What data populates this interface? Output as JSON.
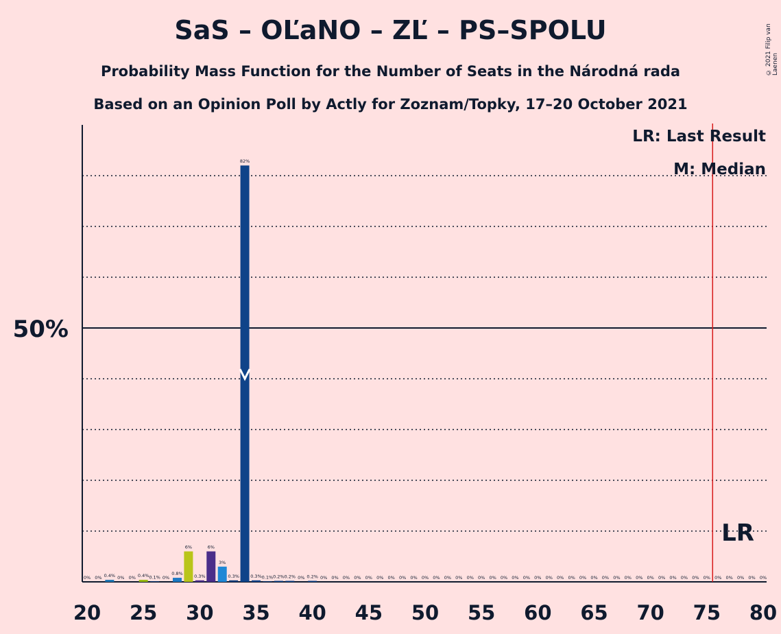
{
  "chart_data": {
    "type": "bar",
    "title": "SaS – OĽaNO – ZĽ – PS–SPOLU",
    "subtitle": "Probability Mass Function for the Number of Seats in the Národná rada",
    "subtitle2": "Based on an Opinion Poll by Actly for Zoznam/Topky, 17–20 October 2021",
    "copyright": "© 2021 Filip van Laenen",
    "legend": {
      "lr": "LR: Last Result",
      "median": "M: Median",
      "position": "top-right"
    },
    "x": [
      20,
      21,
      22,
      23,
      24,
      25,
      26,
      27,
      28,
      29,
      30,
      31,
      32,
      33,
      34,
      35,
      36,
      37,
      38,
      39,
      40,
      41,
      42,
      43,
      44,
      45,
      46,
      47,
      48,
      49,
      50,
      51,
      52,
      53,
      54,
      55,
      56,
      57,
      58,
      59,
      60,
      61,
      62,
      63,
      64,
      65,
      66,
      67,
      68,
      69,
      70,
      71,
      72,
      73,
      74,
      75,
      76,
      77,
      78,
      79,
      80
    ],
    "values": [
      0,
      0,
      0.4,
      0,
      0,
      0.4,
      0.1,
      0,
      0.8,
      6,
      0.3,
      6,
      3,
      0.3,
      82,
      0.3,
      0.1,
      0.2,
      0.2,
      0,
      0.2,
      0,
      0,
      0,
      0,
      0,
      0,
      0,
      0,
      0,
      0,
      0,
      0,
      0,
      0,
      0,
      0,
      0,
      0,
      0,
      0,
      0,
      0,
      0,
      0,
      0,
      0,
      0,
      0,
      0,
      0,
      0,
      0,
      0,
      0,
      0,
      0,
      0,
      0,
      0,
      0
    ],
    "data_labels": [
      "0%",
      "0%",
      "0.4%",
      "0%",
      "0%",
      "0.4%",
      "0.1%",
      "0%",
      "0.8%",
      "6%",
      "0.3%",
      "6%",
      "3%",
      "0.3%",
      "82%",
      "0.3%",
      "0.1%",
      "0.2%",
      "0.2%",
      "0%",
      "0.2%",
      "0%",
      "0%",
      "0%",
      "0%",
      "0%",
      "0%",
      "0%",
      "0%",
      "0%",
      "0%",
      "0%",
      "0%",
      "0%",
      "0%",
      "0%",
      "0%",
      "0%",
      "0%",
      "0%",
      "0%",
      "0%",
      "0%",
      "0%",
      "0%",
      "0%",
      "0%",
      "0%",
      "0%",
      "0%",
      "0%",
      "0%",
      "0%",
      "0%",
      "0%",
      "0%",
      "0%",
      "0%",
      "0%",
      "0%",
      "0%"
    ],
    "colors": {
      "20": "#1f77b4",
      "21": "#1f77b4",
      "22": "#1f77b4",
      "25": "#9bbb13",
      "28": "#1c7ac4",
      "29": "#b9c51a",
      "30": "#4b2e8a",
      "31": "#4b2e8a",
      "32": "#1f88d6",
      "33": "#0f3d7a",
      "34": "#0f4389"
    },
    "default_color": "#0f4389",
    "xlim": [
      20,
      80
    ],
    "ylim": [
      0,
      90
    ],
    "xticks": [
      20,
      25,
      30,
      35,
      40,
      45,
      50,
      55,
      60,
      65,
      70,
      75,
      80
    ],
    "ytick_label": "50%",
    "ytick_value": 50,
    "dotted_gridlines": [
      10,
      20,
      30,
      40,
      60,
      70,
      80
    ],
    "median": 34,
    "last_result": 76,
    "lr_label": "LR",
    "grid": true,
    "background": "#ffe1e1",
    "lr_color": "#d81b1b"
  }
}
